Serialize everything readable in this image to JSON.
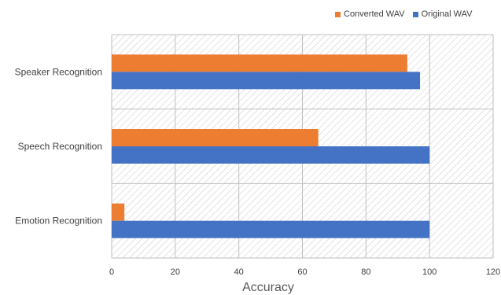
{
  "chart_data": {
    "type": "bar",
    "orientation": "horizontal",
    "categories": [
      "Speaker Recognition",
      "Speech Recognition",
      "Emotion Recognition"
    ],
    "series": [
      {
        "name": "Converted WAV",
        "color": "#ED7D31",
        "values": [
          93,
          65,
          4
        ]
      },
      {
        "name": "Original WAV",
        "color": "#4472C4",
        "values": [
          97,
          100,
          100
        ]
      }
    ],
    "title": "",
    "xlabel": "Accuracy",
    "ylabel": "",
    "xlim": [
      0,
      120
    ],
    "xticks": [
      0,
      20,
      40,
      60,
      80,
      100,
      120
    ],
    "grid": true,
    "background": "hatched",
    "legend_position": "top-right"
  }
}
